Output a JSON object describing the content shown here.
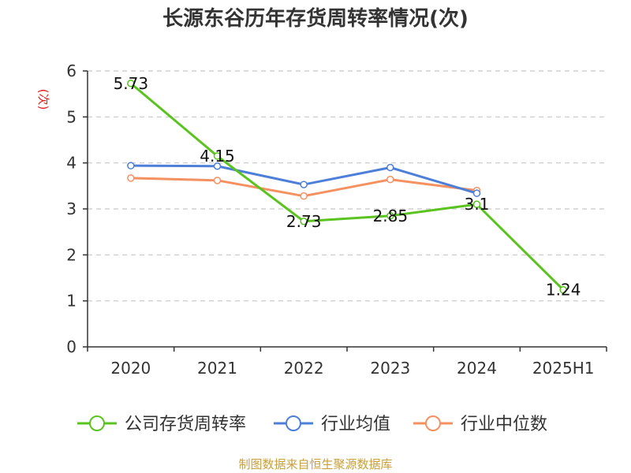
{
  "chart_data": {
    "type": "line",
    "title": "长源东谷历年存货周转率情况(次)",
    "ylabel": "(次)",
    "categories": [
      "2020",
      "2021",
      "2022",
      "2023",
      "2024",
      "2025H1"
    ],
    "ylim": [
      0,
      6
    ],
    "yticks": [
      0,
      1,
      2,
      3,
      4,
      5,
      6
    ],
    "grid": true,
    "legend_position": "bottom",
    "series": [
      {
        "name": "公司存货周转率",
        "color": "#5ac31f",
        "show_labels": true,
        "values": [
          5.73,
          4.15,
          2.73,
          2.85,
          3.1,
          1.24
        ],
        "labels": [
          "5.73",
          "4.15",
          "2.73",
          "2.85",
          "3.1",
          "1.24"
        ]
      },
      {
        "name": "行业均值",
        "color": "#4d7fd8",
        "show_labels": false,
        "values": [
          3.94,
          3.93,
          3.53,
          3.9,
          3.34,
          null
        ]
      },
      {
        "name": "行业中位数",
        "color": "#f59160",
        "show_labels": false,
        "values": [
          3.67,
          3.62,
          3.28,
          3.64,
          3.4,
          null
        ]
      }
    ]
  },
  "footer": {
    "source": "制图数据来自恒生聚源数据库"
  }
}
